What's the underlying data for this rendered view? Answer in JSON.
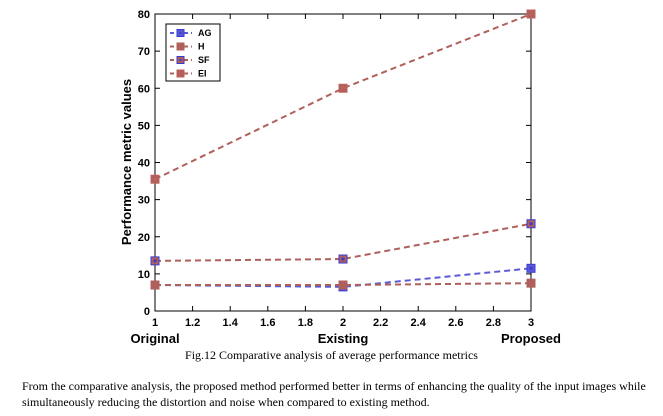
{
  "chart_data": {
    "type": "line",
    "ylabel": "Performance metric values",
    "xlim": [
      1,
      3
    ],
    "ylim": [
      0,
      80
    ],
    "x_ticks": [
      "1",
      "1.2",
      "1.4",
      "1.6",
      "1.8",
      "2",
      "2.2",
      "2.4",
      "2.6",
      "2.8",
      "3"
    ],
    "y_ticks": [
      "0",
      "10",
      "20",
      "30",
      "40",
      "50",
      "60",
      "70",
      "80"
    ],
    "categories": [
      "Original",
      "Existing",
      "Proposed"
    ],
    "x": [
      1,
      2,
      3
    ],
    "legend_position": "top-left",
    "grid": false,
    "series": [
      {
        "name": "AG",
        "values": [
          7,
          6.5,
          11.5
        ],
        "line_color": "#5a5ad6",
        "marker_color": "#3a3ad0"
      },
      {
        "name": "H",
        "values": [
          7,
          7,
          7.5
        ],
        "line_color": "#b0605c",
        "marker_color": "#b0605c"
      },
      {
        "name": "SF",
        "values": [
          13.5,
          14,
          23.5
        ],
        "line_color": "#b0605c",
        "marker_color": "#3a3ad0"
      },
      {
        "name": "EI",
        "values": [
          35.5,
          60,
          80
        ],
        "line_color": "#b0605c",
        "marker_color": "#c0605c"
      }
    ]
  },
  "caption": "Fig.12 Comparative analysis of average performance metrics",
  "body_text": "From the comparative analysis, the proposed method performed better in terms of enhancing the quality of the input images while simultaneously reducing the distortion and noise when compared to existing method."
}
